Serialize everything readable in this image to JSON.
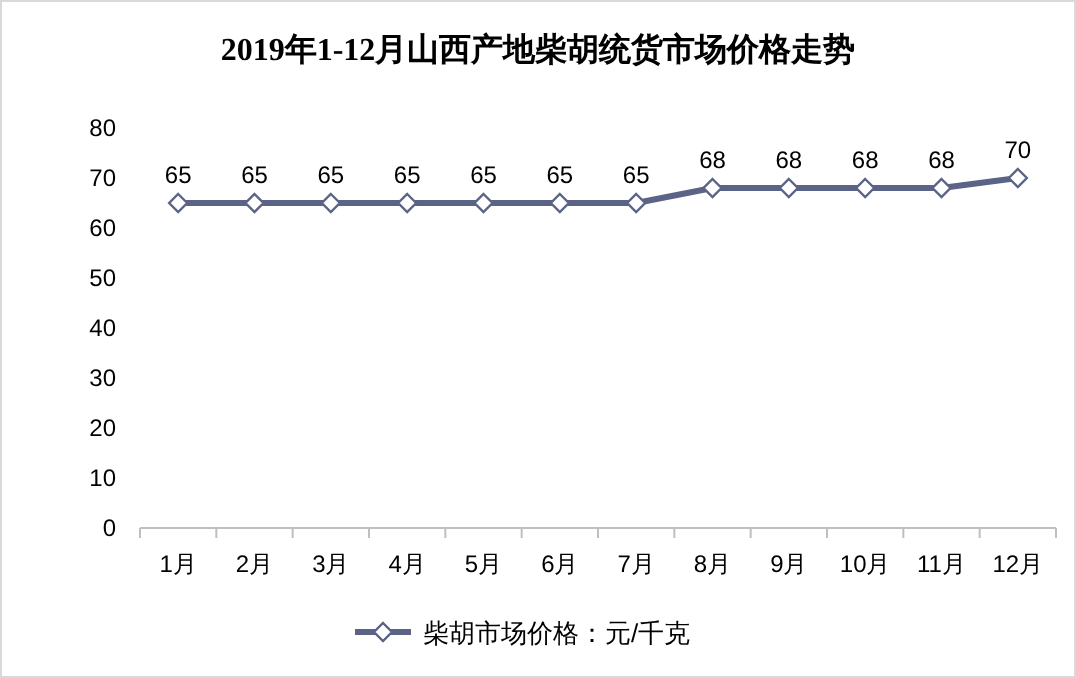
{
  "chart_data": {
    "type": "line",
    "title": "2019年1-12月山西产地柴胡统货市场价格走势",
    "categories": [
      "1月",
      "2月",
      "3月",
      "4月",
      "5月",
      "6月",
      "7月",
      "8月",
      "9月",
      "10月",
      "11月",
      "12月"
    ],
    "series": [
      {
        "name": "柴胡市场价格：元/千克",
        "color": "#5b6386",
        "values": [
          65,
          65,
          65,
          65,
          65,
          65,
          65,
          68,
          68,
          68,
          68,
          70
        ]
      }
    ],
    "ylim": [
      0,
      80
    ],
    "yticks": [
      0,
      10,
      20,
      30,
      40,
      50,
      60,
      70,
      80
    ],
    "grid": false,
    "legend": "bottom",
    "marker": "diamond",
    "data_labels": true
  }
}
